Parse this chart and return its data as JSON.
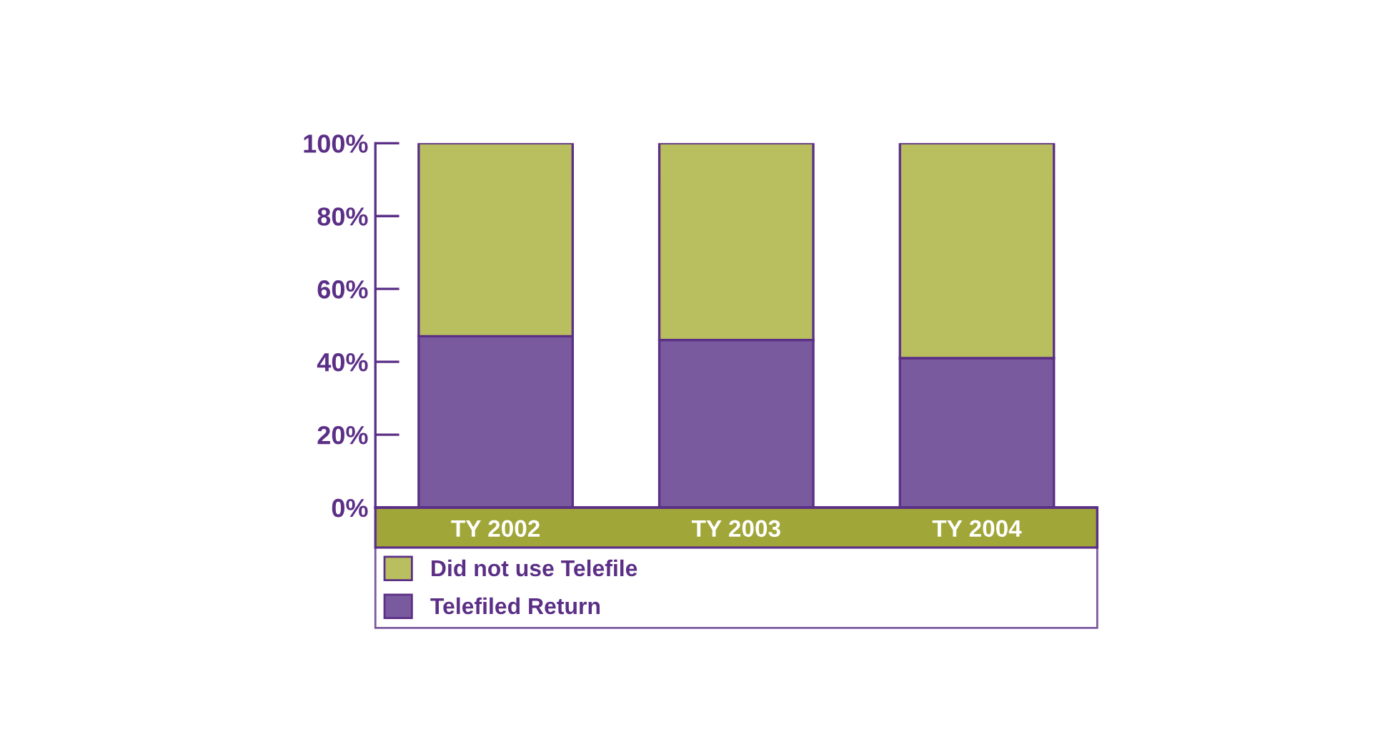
{
  "chart_data": {
    "type": "bar",
    "stacked": true,
    "categories": [
      "TY 2002",
      "TY 2003",
      "TY 2004"
    ],
    "series": [
      {
        "name": "Telefiled Return",
        "color": "#7a5a9e",
        "values": [
          47,
          46,
          41
        ]
      },
      {
        "name": "Did not use Telefile",
        "color": "#b9bf5e",
        "values": [
          53,
          54,
          59
        ]
      }
    ],
    "ylim": [
      0,
      100
    ],
    "yticks": [
      {
        "value": 0,
        "label": "0%"
      },
      {
        "value": 20,
        "label": "20%"
      },
      {
        "value": 40,
        "label": "40%"
      },
      {
        "value": 60,
        "label": "60%"
      },
      {
        "value": 80,
        "label": "80%"
      },
      {
        "value": 100,
        "label": "100%"
      }
    ],
    "grid": false,
    "legend": "bottom"
  }
}
